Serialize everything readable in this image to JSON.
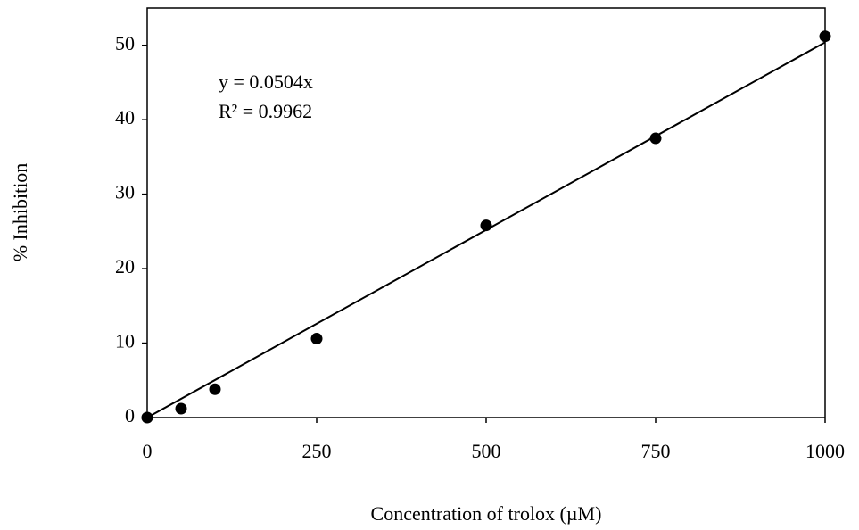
{
  "chart_data": {
    "type": "scatter",
    "x_label": "Concentration of trolox (µM)",
    "y_label": "% Inhibition",
    "x": [
      0,
      50,
      100,
      250,
      500,
      750,
      1000
    ],
    "values": [
      0,
      1.2,
      3.8,
      10.6,
      25.8,
      37.5,
      51.2
    ],
    "color": "#000000",
    "xlim": [
      0,
      1000
    ],
    "xticks": [
      0,
      250,
      500,
      750,
      1000
    ],
    "ylim": [
      0,
      55
    ],
    "yticks": [
      0,
      10,
      20,
      30,
      40,
      50
    ],
    "grid": false,
    "trendline": {
      "slope": 0.0504,
      "equation": "y = 0.0504x",
      "r_squared": "R² = 0.9962"
    }
  }
}
